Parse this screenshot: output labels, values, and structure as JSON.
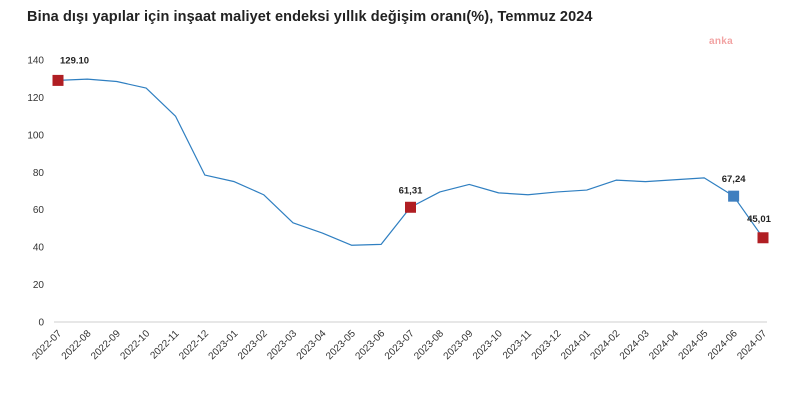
{
  "title": "Bina dışı yapılar için inşaat maliyet endeksi yıllık değişim oranı(%), Temmuz 2024",
  "brand": "anka",
  "chart_data": {
    "type": "line",
    "title": "Bina dışı yapılar için inşaat maliyet endeksi yıllık değişim oranı(%), Temmuz 2024",
    "xlabel": "",
    "ylabel": "",
    "ylim": [
      0,
      140
    ],
    "yticks": [
      0,
      20,
      40,
      60,
      80,
      100,
      120,
      140
    ],
    "grid": false,
    "legend": "none",
    "categories": [
      "2022-07",
      "2022-08",
      "2022-09",
      "2022-10",
      "2022-11",
      "2022-12",
      "2023-01",
      "2023-02",
      "2023-03",
      "2023-04",
      "2023-05",
      "2023-06",
      "2023-07",
      "2023-08",
      "2023-09",
      "2023-10",
      "2023-11",
      "2023-12",
      "2024-01",
      "2024-02",
      "2024-03",
      "2024-04",
      "2024-05",
      "2024-06",
      "2024-07"
    ],
    "series": [
      {
        "color": "#2f7fc1",
        "values": [
          129.1,
          129.8,
          128.5,
          125.0,
          110.0,
          78.5,
          75.0,
          68.0,
          53.0,
          47.5,
          41.0,
          41.5,
          61.31,
          69.5,
          73.5,
          69.0,
          68.0,
          69.5,
          70.5,
          75.8,
          75.0,
          76.0,
          77.0,
          67.24,
          45.01
        ]
      }
    ],
    "annotations": [
      {
        "index": 0,
        "label": "129.10",
        "marker_color": "#b01e23"
      },
      {
        "index": 12,
        "label": "61,31",
        "marker_color": "#b01e23"
      },
      {
        "index": 23,
        "label": "67,24",
        "marker_color": "#3f7fbf"
      },
      {
        "index": 24,
        "label": "45,01",
        "marker_color": "#b01e23"
      }
    ]
  }
}
